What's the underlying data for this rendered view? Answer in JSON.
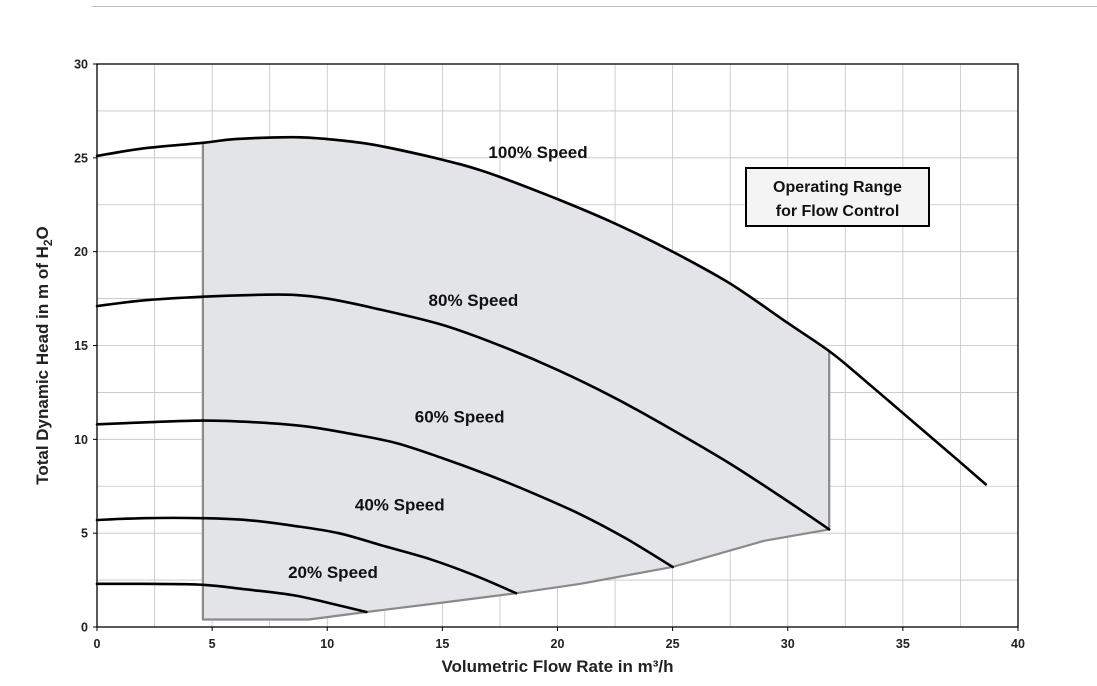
{
  "chart_data": {
    "type": "line",
    "xlabel": "Volumetric Flow Rate in m³/h",
    "ylabel_parts": [
      "Total Dynamic Head in m of H",
      "2",
      "O"
    ],
    "xlim": [
      0,
      40
    ],
    "ylim": [
      0,
      30
    ],
    "xticks": [
      0,
      5,
      10,
      15,
      20,
      25,
      30,
      35,
      40
    ],
    "yticks": [
      0,
      5,
      10,
      15,
      20,
      25,
      30
    ],
    "grid": true,
    "minor_grid_x_step": 2.5,
    "minor_grid_y_step": 2.5,
    "series": [
      {
        "name": "100% Speed",
        "label_at": [
          17,
          25
        ],
        "points": [
          [
            0,
            25.1
          ],
          [
            2,
            25.5
          ],
          [
            4.6,
            25.8
          ],
          [
            6,
            26.0
          ],
          [
            8.5,
            26.1
          ],
          [
            10,
            26.0
          ],
          [
            12,
            25.7
          ],
          [
            15,
            24.9
          ],
          [
            17,
            24.2
          ],
          [
            20,
            22.8
          ],
          [
            22.5,
            21.5
          ],
          [
            25,
            20.0
          ],
          [
            27.5,
            18.3
          ],
          [
            30,
            16.2
          ],
          [
            31.8,
            14.7
          ],
          [
            33,
            13.5
          ],
          [
            35,
            11.4
          ],
          [
            37,
            9.3
          ],
          [
            38.6,
            7.6
          ]
        ]
      },
      {
        "name": "80% Speed",
        "label_at": [
          14.4,
          17.1
        ],
        "points": [
          [
            0,
            17.1
          ],
          [
            2,
            17.4
          ],
          [
            4.6,
            17.6
          ],
          [
            7,
            17.7
          ],
          [
            8.5,
            17.7
          ],
          [
            10,
            17.5
          ],
          [
            12,
            17.0
          ],
          [
            15,
            16.1
          ],
          [
            17.5,
            15.0
          ],
          [
            20,
            13.7
          ],
          [
            22.5,
            12.2
          ],
          [
            25,
            10.5
          ],
          [
            27.5,
            8.7
          ],
          [
            30,
            6.7
          ],
          [
            31.8,
            5.2
          ]
        ]
      },
      {
        "name": "60% Speed",
        "label_at": [
          13.8,
          10.9
        ],
        "points": [
          [
            0,
            10.8
          ],
          [
            2,
            10.9
          ],
          [
            4.6,
            11.0
          ],
          [
            7,
            10.9
          ],
          [
            9,
            10.7
          ],
          [
            11,
            10.3
          ],
          [
            13,
            9.8
          ],
          [
            15,
            9.0
          ],
          [
            17,
            8.1
          ],
          [
            19,
            7.1
          ],
          [
            21,
            6.0
          ],
          [
            23,
            4.7
          ],
          [
            25,
            3.2
          ]
        ]
      },
      {
        "name": "40% Speed",
        "label_at": [
          11.2,
          6.2
        ],
        "points": [
          [
            0,
            5.7
          ],
          [
            2,
            5.8
          ],
          [
            4.6,
            5.8
          ],
          [
            6.5,
            5.7
          ],
          [
            8.5,
            5.4
          ],
          [
            10.5,
            5.0
          ],
          [
            12.5,
            4.3
          ],
          [
            14.5,
            3.6
          ],
          [
            16.5,
            2.7
          ],
          [
            18.2,
            1.8
          ]
        ]
      },
      {
        "name": "20% Speed",
        "label_at": [
          8.3,
          2.6
        ],
        "points": [
          [
            0,
            2.3
          ],
          [
            2,
            2.3
          ],
          [
            4.6,
            2.25
          ],
          [
            6.5,
            2.0
          ],
          [
            8.5,
            1.7
          ],
          [
            10,
            1.3
          ],
          [
            11.7,
            0.8
          ]
        ]
      }
    ],
    "operating_range": {
      "boundary": [
        [
          4.6,
          25.8
        ],
        [
          6,
          26.0
        ],
        [
          8.5,
          26.1
        ],
        [
          10,
          26.0
        ],
        [
          12,
          25.7
        ],
        [
          15,
          24.9
        ],
        [
          17,
          24.2
        ],
        [
          20,
          22.8
        ],
        [
          22.5,
          21.5
        ],
        [
          25,
          20.0
        ],
        [
          27.5,
          18.3
        ],
        [
          30,
          16.2
        ],
        [
          31.8,
          14.7
        ],
        [
          31.8,
          5.2
        ],
        [
          29,
          4.6
        ],
        [
          25,
          3.2
        ],
        [
          21,
          2.3
        ],
        [
          18.2,
          1.8
        ],
        [
          15,
          1.3
        ],
        [
          11.7,
          0.8
        ],
        [
          9.2,
          0.4
        ],
        [
          4.6,
          0.4
        ]
      ],
      "fill_color": "#e3e4e7",
      "edge_color": "#8a8a8a"
    },
    "annotation": {
      "lines": [
        "Operating Range",
        "for Flow Control"
      ],
      "position": "upper-right"
    },
    "colors": {
      "curve": "#000000",
      "grid": "#c4c4c4",
      "frame": "#000000"
    }
  }
}
